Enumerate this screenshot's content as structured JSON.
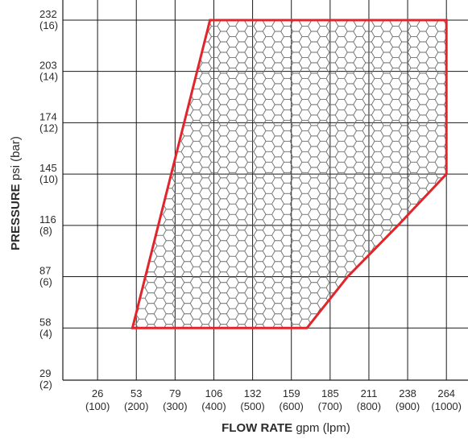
{
  "chart_data": {
    "type": "area",
    "title": "",
    "xlabel": {
      "bold": "FLOW RATE",
      "rest": " gpm (lpm)"
    },
    "ylabel": {
      "bold": "PRESSURE",
      "rest": " psi (bar)"
    },
    "x_ticks": [
      {
        "gpm": "26",
        "lpm": "(100)",
        "value": 100
      },
      {
        "gpm": "53",
        "lpm": "(200)",
        "value": 200
      },
      {
        "gpm": "79",
        "lpm": "(300)",
        "value": 300
      },
      {
        "gpm": "106",
        "lpm": "(400)",
        "value": 400
      },
      {
        "gpm": "132",
        "lpm": "(500)",
        "value": 500
      },
      {
        "gpm": "159",
        "lpm": "(600)",
        "value": 600
      },
      {
        "gpm": "185",
        "lpm": "(700)",
        "value": 700
      },
      {
        "gpm": "211",
        "lpm": "(800)",
        "value": 800
      },
      {
        "gpm": "238",
        "lpm": "(900)",
        "value": 900
      },
      {
        "gpm": "264",
        "lpm": "(1000)",
        "value": 1000
      }
    ],
    "y_ticks": [
      {
        "psi": "232",
        "bar": "(16)",
        "value": 16
      },
      {
        "psi": "203",
        "bar": "(14)",
        "value": 14
      },
      {
        "psi": "174",
        "bar": "(12)",
        "value": 12
      },
      {
        "psi": "145",
        "bar": "(10)",
        "value": 10
      },
      {
        "psi": "116",
        "bar": "(8)",
        "value": 8
      },
      {
        "psi": "87",
        "bar": "(6)",
        "value": 6
      },
      {
        "psi": "58",
        "bar": "(4)",
        "value": 4
      },
      {
        "psi": "29",
        "bar": "(2)",
        "value": 2
      }
    ],
    "xlim": [
      0,
      1000
    ],
    "ylim": [
      2,
      16
    ],
    "grid": true,
    "operating_region": {
      "units": "lpm, bar",
      "points": [
        [
          190,
          4
        ],
        [
          390,
          16
        ],
        [
          1000,
          16
        ],
        [
          1000,
          10
        ],
        [
          875,
          8
        ],
        [
          745,
          6
        ],
        [
          640,
          4
        ]
      ],
      "outline_color": "#e0252b",
      "fill_pattern": "hexagon",
      "pattern_color": "#6b6b6b"
    },
    "grid_color": "#1a1a1a"
  }
}
